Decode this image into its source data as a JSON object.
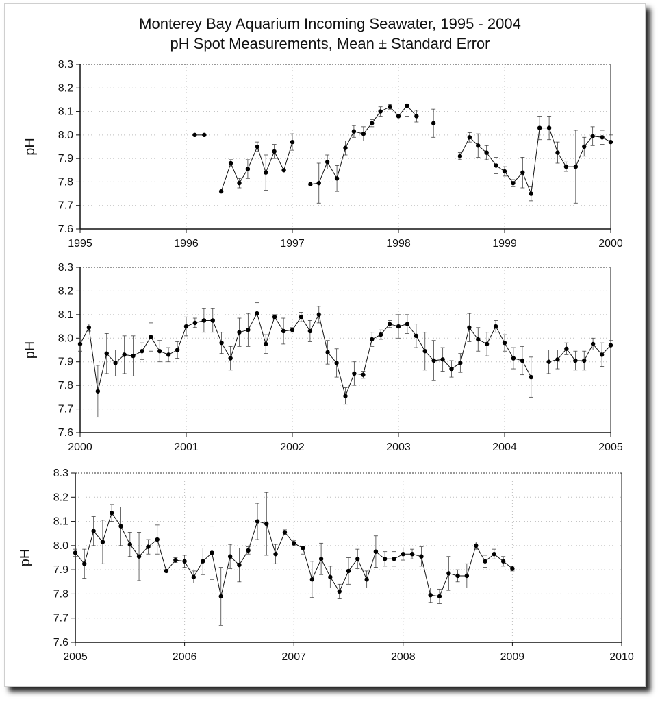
{
  "title_line1": "Monterey Bay Aquarium Incoming Seawater, 1995 - 2004",
  "title_line2": "pH Spot Measurements, Mean ± Standard Error",
  "chart_data": [
    {
      "type": "line",
      "ylabel": "pH",
      "xlim": [
        1995,
        2000
      ],
      "ylim": [
        7.6,
        8.3
      ],
      "x_ticks": [
        "1995",
        "1996",
        "1997",
        "1998",
        "1999",
        "2000"
      ],
      "y_ticks": [
        "7.6",
        "7.7",
        "7.8",
        "7.9",
        "8.0",
        "8.1",
        "8.2",
        "8.3"
      ],
      "grid": true,
      "segments": [
        {
          "x": [
            1996.08,
            1996.17
          ],
          "y": [
            8.0,
            8.0
          ],
          "err": [
            0,
            0
          ]
        },
        {
          "x": [
            1996.33,
            1996.42,
            1996.5,
            1996.58,
            1996.67,
            1996.75,
            1996.83,
            1996.92,
            1997.0
          ],
          "y": [
            7.76,
            7.88,
            7.795,
            7.855,
            7.95,
            7.84,
            7.93,
            7.85,
            7.97
          ],
          "err": [
            0,
            0.015,
            0.02,
            0.04,
            0.02,
            0.075,
            0.03,
            0,
            0.035
          ]
        },
        {
          "x": [
            1997.17,
            1997.25,
            1997.33,
            1997.42,
            1997.5,
            1997.58,
            1997.67,
            1997.75,
            1997.83,
            1997.92,
            1998.0,
            1998.08,
            1998.17
          ],
          "y": [
            7.79,
            7.795,
            7.885,
            7.815,
            7.945,
            8.015,
            8.005,
            8.05,
            8.1,
            8.12,
            8.08,
            8.125,
            8.08
          ],
          "err": [
            0,
            0.085,
            0.03,
            0.055,
            0.03,
            0.025,
            0.03,
            0.015,
            0.02,
            0.01,
            0,
            0.045,
            0.025
          ]
        },
        {
          "x": [
            1998.33
          ],
          "y": [
            8.05
          ],
          "err": [
            0.06
          ]
        },
        {
          "x": [
            1998.58,
            1998.67,
            1998.75,
            1998.83,
            1998.92,
            1999.0,
            1999.08,
            1999.17,
            1999.25,
            1999.33,
            1999.42,
            1999.5,
            1999.58,
            1999.67,
            1999.75,
            1999.83,
            1999.92,
            2000.0
          ],
          "y": [
            7.91,
            7.99,
            7.955,
            7.925,
            7.87,
            7.845,
            7.795,
            7.84,
            7.75,
            8.03,
            8.03,
            7.925,
            7.865,
            7.865,
            7.95,
            7.995,
            7.99,
            7.97
          ],
          "err": [
            0.015,
            0.02,
            0.05,
            0.03,
            0.035,
            0.02,
            0.015,
            0.065,
            0.03,
            0.05,
            0.05,
            0.045,
            0.02,
            0.155,
            0.04,
            0.04,
            0.03,
            0.03
          ]
        }
      ]
    },
    {
      "type": "line",
      "ylabel": "pH",
      "xlim": [
        2000,
        2005
      ],
      "ylim": [
        7.6,
        8.3
      ],
      "x_ticks": [
        "2000",
        "2001",
        "2002",
        "2003",
        "2004",
        "2005"
      ],
      "y_ticks": [
        "7.6",
        "7.7",
        "7.8",
        "7.9",
        "8.0",
        "8.1",
        "8.2",
        "8.3"
      ],
      "grid": true,
      "segments": [
        {
          "x": [
            2000.0,
            2000.083,
            2000.167,
            2000.25,
            2000.333,
            2000.417,
            2000.5,
            2000.583,
            2000.667,
            2000.75,
            2000.833,
            2000.917,
            2001.0,
            2001.083,
            2001.167,
            2001.25,
            2001.333,
            2001.417,
            2001.5,
            2001.583,
            2001.667,
            2001.75,
            2001.833,
            2001.917,
            2002.0,
            2002.083,
            2002.167,
            2002.25,
            2002.333,
            2002.417,
            2002.5,
            2002.583,
            2002.667,
            2002.75,
            2002.833,
            2002.917,
            2003.0,
            2003.083,
            2003.167,
            2003.25,
            2003.333,
            2003.417,
            2003.5,
            2003.583,
            2003.667,
            2003.75,
            2003.833,
            2003.917,
            2004.0,
            2004.083,
            2004.167,
            2004.25
          ],
          "y": [
            7.975,
            8.045,
            7.775,
            7.935,
            7.895,
            7.93,
            7.925,
            7.945,
            8.005,
            7.945,
            7.93,
            7.95,
            8.05,
            8.065,
            8.075,
            8.075,
            7.98,
            7.915,
            8.025,
            8.035,
            8.105,
            7.975,
            8.09,
            8.03,
            8.035,
            8.09,
            8.03,
            8.1,
            7.94,
            7.895,
            7.755,
            7.85,
            7.845,
            7.995,
            8.015,
            8.06,
            8.05,
            8.06,
            8.01,
            7.945,
            7.905,
            7.91,
            7.87,
            7.895,
            8.045,
            7.995,
            7.975,
            8.05,
            7.98,
            7.915,
            7.905,
            7.835
          ],
          "err": [
            0.03,
            0.015,
            0.11,
            0.085,
            0.055,
            0.08,
            0.085,
            0.035,
            0.06,
            0.045,
            0.03,
            0.035,
            0.04,
            0.02,
            0.05,
            0.05,
            0.045,
            0.05,
            0.06,
            0.07,
            0.045,
            0.04,
            0.01,
            0.055,
            0.01,
            0.02,
            0.045,
            0.035,
            0.05,
            0.06,
            0.035,
            0.05,
            0.015,
            0.03,
            0.02,
            0.015,
            0.05,
            0.04,
            0.05,
            0.08,
            0.085,
            0.05,
            0.035,
            0.04,
            0.06,
            0.05,
            0.05,
            0.025,
            0.035,
            0.045,
            0.06,
            0.085
          ]
        },
        {
          "x": [
            2004.417,
            2004.5,
            2004.583,
            2004.667,
            2004.75,
            2004.833,
            2004.917,
            2005.0
          ],
          "y": [
            7.9,
            7.91,
            7.955,
            7.905,
            7.905,
            7.975,
            7.93,
            7.97
          ],
          "err": [
            0.05,
            0.04,
            0.025,
            0.04,
            0.04,
            0.025,
            0.05,
            0.02
          ]
        }
      ]
    },
    {
      "type": "line",
      "ylabel": "pH",
      "xlim": [
        2005,
        2010
      ],
      "ylim": [
        7.6,
        8.3
      ],
      "x_ticks": [
        "2005",
        "2006",
        "2007",
        "2008",
        "2009",
        "2010"
      ],
      "y_ticks": [
        "7.6",
        "7.7",
        "7.8",
        "7.9",
        "8.0",
        "8.1",
        "8.2",
        "8.3"
      ],
      "grid": true,
      "segments": [
        {
          "x": [
            2005.0,
            2005.083,
            2005.167,
            2005.25,
            2005.333,
            2005.417,
            2005.5,
            2005.583,
            2005.667,
            2005.75,
            2005.833,
            2005.917,
            2006.0,
            2006.083,
            2006.167,
            2006.25,
            2006.333,
            2006.417,
            2006.5,
            2006.583,
            2006.667,
            2006.75,
            2006.833,
            2006.917,
            2007.0,
            2007.083,
            2007.167,
            2007.25,
            2007.333,
            2007.417,
            2007.5,
            2007.583,
            2007.667,
            2007.75,
            2007.833,
            2007.917,
            2008.0,
            2008.083,
            2008.167,
            2008.25,
            2008.333,
            2008.417,
            2008.5,
            2008.583,
            2008.667,
            2008.75,
            2008.833,
            2008.917,
            2009.0
          ],
          "y": [
            7.97,
            7.925,
            8.06,
            8.015,
            8.135,
            8.08,
            8.005,
            7.955,
            7.995,
            8.025,
            7.895,
            7.94,
            7.935,
            7.87,
            7.935,
            7.97,
            7.79,
            7.955,
            7.92,
            7.98,
            8.1,
            8.09,
            7.965,
            8.055,
            8.01,
            7.99,
            7.86,
            7.945,
            7.87,
            7.81,
            7.895,
            7.945,
            7.86,
            7.975,
            7.945,
            7.945,
            7.965,
            7.965,
            7.955,
            7.795,
            7.79,
            7.885,
            7.875,
            7.875,
            8.0,
            7.935,
            7.965,
            7.935,
            7.905
          ]
        },
        {
          "x": [],
          "y": []
        }
      ],
      "errs": [
        0.015,
        0.06,
        0.06,
        0.09,
        0.035,
        0.08,
        0.05,
        0.1,
        0.03,
        0.06,
        0.005,
        0.01,
        0.025,
        0.025,
        0.055,
        0.11,
        0.12,
        0.05,
        0.07,
        0.015,
        0.075,
        0.13,
        0.04,
        0.01,
        0.01,
        0.025,
        0.075,
        0.065,
        0.045,
        0.03,
        0.055,
        0.04,
        0.035,
        0.065,
        0.03,
        0.03,
        0.025,
        0.02,
        0.04,
        0.03,
        0.03,
        0.07,
        0.025,
        0.05,
        0.015,
        0.025,
        0.02,
        0.02,
        0.01
      ]
    }
  ]
}
